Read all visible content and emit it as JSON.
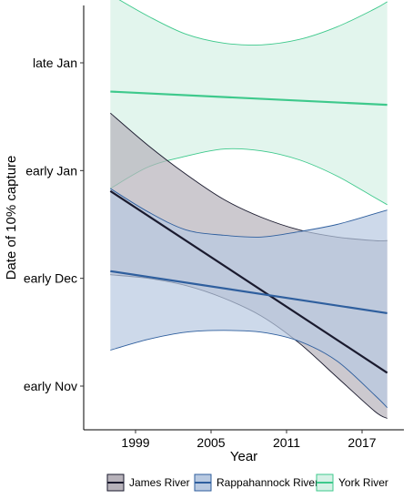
{
  "chart_data": {
    "type": "line",
    "title": "",
    "xlabel": "Year",
    "ylabel": "Date of 10% capture",
    "xlim": [
      1995,
      2020
    ],
    "ylim": [
      -12,
      75
    ],
    "x_ticks": [
      1999,
      2005,
      2011,
      2017
    ],
    "y_ticks": [
      {
        "value": 0,
        "label": "early Nov"
      },
      {
        "value": 30,
        "label": "early Dec"
      },
      {
        "value": 60,
        "label": "early Jan"
      },
      {
        "value": 90,
        "label": "late Jan"
      }
    ],
    "grid": false,
    "legend_position": "bottom",
    "series": [
      {
        "name": "James River",
        "color": "#1a1a2e",
        "fill": "#b7b2ba",
        "x": [
          1997,
          2000,
          2003,
          2006,
          2009,
          2012,
          2015,
          2018,
          2019
        ],
        "fit": [
          54.3,
          47.4,
          40.5,
          33.6,
          26.7,
          19.8,
          12.9,
          6.0,
          3.7
        ],
        "lower": [
          31.0,
          30.0,
          28.0,
          24.5,
          19.5,
          12.0,
          2.5,
          -7.0,
          -9.0
        ],
        "upper": [
          76.0,
          67.0,
          59.0,
          52.0,
          47.0,
          43.5,
          41.5,
          40.5,
          40.5
        ]
      },
      {
        "name": "Rappahannock River",
        "color": "#2f5f9e",
        "fill": "#b8c9e1",
        "x": [
          1997,
          2000,
          2003,
          2006,
          2009,
          2012,
          2015,
          2018,
          2019
        ],
        "fit": [
          32.0,
          30.4,
          28.8,
          27.2,
          25.6,
          24.0,
          22.4,
          20.8,
          20.3
        ],
        "lower": [
          10.0,
          13.0,
          15.0,
          15.5,
          15.0,
          12.5,
          7.0,
          -2.5,
          -6.0
        ],
        "upper": [
          55.0,
          48.5,
          43.5,
          42.0,
          41.5,
          43.0,
          45.0,
          48.0,
          49.0
        ]
      },
      {
        "name": "York River",
        "color": "#3ec98c",
        "fill": "#d6f1e6",
        "x": [
          1997,
          2000,
          2003,
          2006,
          2009,
          2012,
          2015,
          2018,
          2019
        ],
        "fit": [
          82.0,
          81.5,
          81.0,
          80.5,
          80.0,
          79.5,
          79.0,
          78.5,
          78.3
        ],
        "lower": [
          55.0,
          61.0,
          64.0,
          66.0,
          65.5,
          63.0,
          58.5,
          52.5,
          50.5
        ],
        "upper": [
          109.0,
          103.0,
          98.0,
          95.5,
          95.0,
          96.5,
          100.0,
          105.0,
          107.0
        ]
      }
    ]
  }
}
